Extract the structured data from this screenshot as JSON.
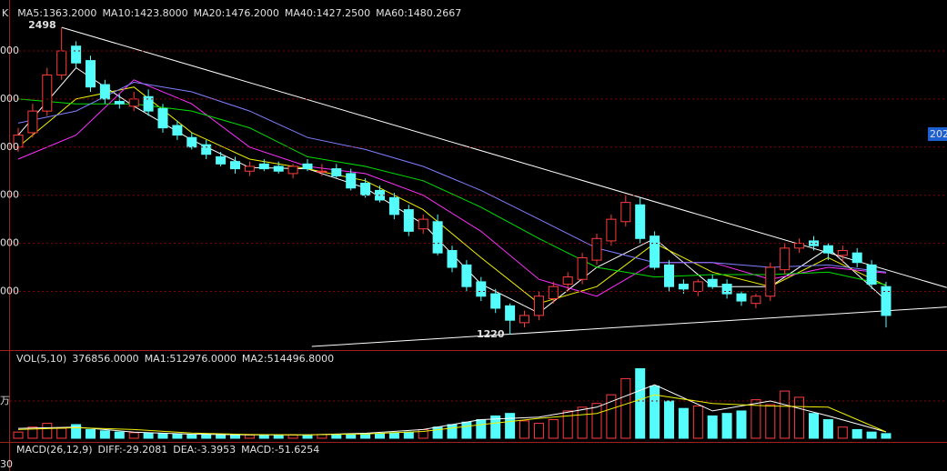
{
  "chart_data": {
    "type": "candlestick",
    "header": "K",
    "ohlc": {
      "open": [
        2000,
        2060,
        2150,
        2300,
        2420,
        2360,
        2260,
        2190,
        2170,
        2210,
        2160,
        2090,
        2040,
        2010,
        1960,
        1940,
        1900,
        1930,
        1920,
        1890,
        1930,
        1900,
        1910,
        1890,
        1850,
        1820,
        1790,
        1740,
        1660,
        1690,
        1570,
        1510,
        1440,
        1390,
        1340,
        1270,
        1300,
        1370,
        1430,
        1450,
        1530,
        1610,
        1690,
        1760,
        1630,
        1510,
        1430,
        1400,
        1450,
        1430,
        1390,
        1350,
        1380,
        1490,
        1580,
        1610,
        1590,
        1550,
        1560,
        1510,
        1420
      ],
      "high": [
        2080,
        2180,
        2330,
        2498,
        2440,
        2380,
        2280,
        2220,
        2230,
        2240,
        2180,
        2110,
        2060,
        2030,
        1980,
        1960,
        1940,
        1950,
        1940,
        1930,
        1950,
        1930,
        1930,
        1910,
        1870,
        1840,
        1810,
        1760,
        1720,
        1720,
        1590,
        1530,
        1460,
        1410,
        1350,
        1320,
        1400,
        1440,
        1480,
        1560,
        1640,
        1720,
        1800,
        1790,
        1650,
        1530,
        1450,
        1450,
        1470,
        1450,
        1400,
        1390,
        1520,
        1600,
        1620,
        1630,
        1600,
        1590,
        1580,
        1530,
        1440
      ],
      "low": [
        1980,
        2040,
        2130,
        2280,
        2330,
        2230,
        2180,
        2160,
        2150,
        2130,
        2060,
        2030,
        1990,
        1950,
        1920,
        1890,
        1880,
        1900,
        1890,
        1870,
        1900,
        1880,
        1870,
        1820,
        1790,
        1770,
        1700,
        1630,
        1640,
        1550,
        1480,
        1400,
        1360,
        1310,
        1220,
        1250,
        1280,
        1350,
        1400,
        1430,
        1510,
        1590,
        1670,
        1600,
        1490,
        1400,
        1390,
        1380,
        1410,
        1370,
        1340,
        1330,
        1360,
        1470,
        1560,
        1570,
        1530,
        1520,
        1500,
        1410,
        1250
      ],
      "close": [
        2050,
        2150,
        2300,
        2400,
        2350,
        2250,
        2200,
        2180,
        2200,
        2150,
        2080,
        2050,
        2000,
        1970,
        1930,
        1910,
        1920,
        1910,
        1900,
        1920,
        1910,
        1900,
        1880,
        1830,
        1800,
        1780,
        1720,
        1650,
        1700,
        1560,
        1500,
        1420,
        1380,
        1330,
        1280,
        1300,
        1380,
        1420,
        1460,
        1540,
        1620,
        1700,
        1770,
        1620,
        1500,
        1420,
        1410,
        1440,
        1420,
        1390,
        1360,
        1380,
        1500,
        1580,
        1600,
        1590,
        1560,
        1570,
        1520,
        1430,
        1300
      ]
    },
    "up_color": "#ff3c3c",
    "down_color": "#54fcfc",
    "ylim": [
      1156,
      2574
    ],
    "yticks": [
      {
        "value": 2400,
        "label": "000"
      },
      {
        "value": 2200,
        "label": "000"
      },
      {
        "value": 2000,
        "label": "000"
      },
      {
        "value": 1800,
        "label": "000"
      },
      {
        "value": 1600,
        "label": "000"
      },
      {
        "value": 1400,
        "label": "000"
      }
    ],
    "grid": true,
    "series": [
      {
        "name": "MA5:1363.2000",
        "color": "#ffffff",
        "x": [
          0,
          4,
          8,
          12,
          16,
          20,
          24,
          28,
          32,
          36,
          40,
          44,
          48,
          52,
          56,
          60
        ],
        "values": [
          2050,
          2330,
          2170,
          2030,
          1915,
          1910,
          1830,
          1680,
          1430,
          1310,
          1500,
          1620,
          1420,
          1420,
          1580,
          1363.2
        ]
      },
      {
        "name": "MA10:1423.8000",
        "color": "#f0f000",
        "x": [
          0,
          4,
          8,
          12,
          16,
          20,
          24,
          28,
          32,
          36,
          40,
          44,
          48,
          52,
          56,
          60
        ],
        "values": [
          2000,
          2200,
          2250,
          2060,
          1950,
          1910,
          1860,
          1740,
          1540,
          1350,
          1420,
          1600,
          1480,
          1420,
          1540,
          1423.8
        ]
      },
      {
        "name": "MA20:1476.2000",
        "color": "#ff30ff",
        "x": [
          0,
          4,
          8,
          12,
          16,
          20,
          24,
          28,
          32,
          36,
          40,
          44,
          48,
          52,
          56,
          60
        ],
        "values": [
          1950,
          2050,
          2280,
          2180,
          2000,
          1920,
          1890,
          1800,
          1650,
          1450,
          1380,
          1520,
          1520,
          1450,
          1500,
          1476.2
        ]
      },
      {
        "name": "MA40:1427.2500",
        "color": "#00e000",
        "x": [
          0,
          4,
          8,
          12,
          16,
          20,
          24,
          28,
          32,
          36,
          40,
          44,
          48,
          52,
          56,
          60
        ],
        "values": [
          2200,
          2180,
          2180,
          2150,
          2080,
          1960,
          1920,
          1860,
          1750,
          1620,
          1500,
          1460,
          1470,
          1470,
          1480,
          1427.25
        ]
      },
      {
        "name": "MA60:1480.2667",
        "color": "#8080ff",
        "x": [
          0,
          4,
          8,
          12,
          16,
          20,
          24,
          28,
          32,
          36,
          40,
          44,
          48,
          52,
          56,
          60
        ],
        "values": [
          2100,
          2150,
          2270,
          2230,
          2150,
          2040,
          1990,
          1920,
          1820,
          1700,
          1580,
          1520,
          1520,
          1500,
          1510,
          1480.2667
        ]
      }
    ],
    "annotations": [
      {
        "x": 3,
        "value": 2498
      },
      {
        "x": 34,
        "value": 1220
      }
    ],
    "trendlines": [
      {
        "x": [
          3,
          64.2
        ],
        "values": [
          2498,
          1416
        ]
      },
      {
        "x": [
          20.3,
          64.2
        ],
        "values": [
          1171,
          1335
        ]
      }
    ],
    "right_tag": "202",
    "volume": {
      "title": "VOL(5,10)",
      "values": [
        500000,
        900000,
        1200000,
        800000,
        1100000,
        700000,
        600000,
        500000,
        450000,
        400000,
        380000,
        350000,
        300000,
        320000,
        280000,
        300000,
        260000,
        250000,
        240000,
        270000,
        260000,
        300000,
        280000,
        350000,
        400000,
        380000,
        450000,
        500000,
        700000,
        900000,
        1100000,
        1300000,
        1500000,
        1800000,
        2000000,
        1400000,
        1200000,
        1500000,
        2200000,
        2500000,
        2800000,
        3500000,
        4800000,
        5600000,
        4200000,
        3000000,
        2400000,
        2600000,
        1800000,
        2000000,
        2200000,
        3100000,
        2700000,
        3800000,
        3300000,
        2000000,
        1500000,
        900000,
        700000,
        500000,
        376856
      ],
      "current": "376856.0000",
      "ylim": [
        0,
        6000000
      ],
      "yticks": [
        {
          "value": 3000000,
          "label": "万"
        }
      ],
      "series": [
        {
          "name": "MA1:512976.0000",
          "color": "#ffffff",
          "x": [
            0,
            4,
            8,
            12,
            16,
            20,
            24,
            28,
            32,
            36,
            40,
            44,
            48,
            52,
            56,
            60
          ],
          "values": [
            800000,
            900000,
            500000,
            330000,
            270000,
            280000,
            400000,
            700000,
            1500000,
            1700000,
            2500000,
            4300000,
            2200000,
            3000000,
            1800000,
            512976
          ]
        },
        {
          "name": "MA2:514496.8000",
          "color": "#f0f000",
          "x": [
            0,
            4,
            8,
            12,
            16,
            20,
            24,
            28,
            32,
            36,
            40,
            44,
            48,
            52,
            56,
            60
          ],
          "values": [
            700000,
            850000,
            700000,
            420000,
            300000,
            280000,
            350000,
            550000,
            1100000,
            1600000,
            2000000,
            3500000,
            2800000,
            2600000,
            2500000,
            514496.8
          ]
        }
      ]
    },
    "macd": {
      "title": "MACD(26,12,9)",
      "items": [
        "DIFF:-29.2081",
        "DEA:-3.3953",
        "MACD:-51.6254"
      ],
      "tick_label": "30"
    }
  }
}
